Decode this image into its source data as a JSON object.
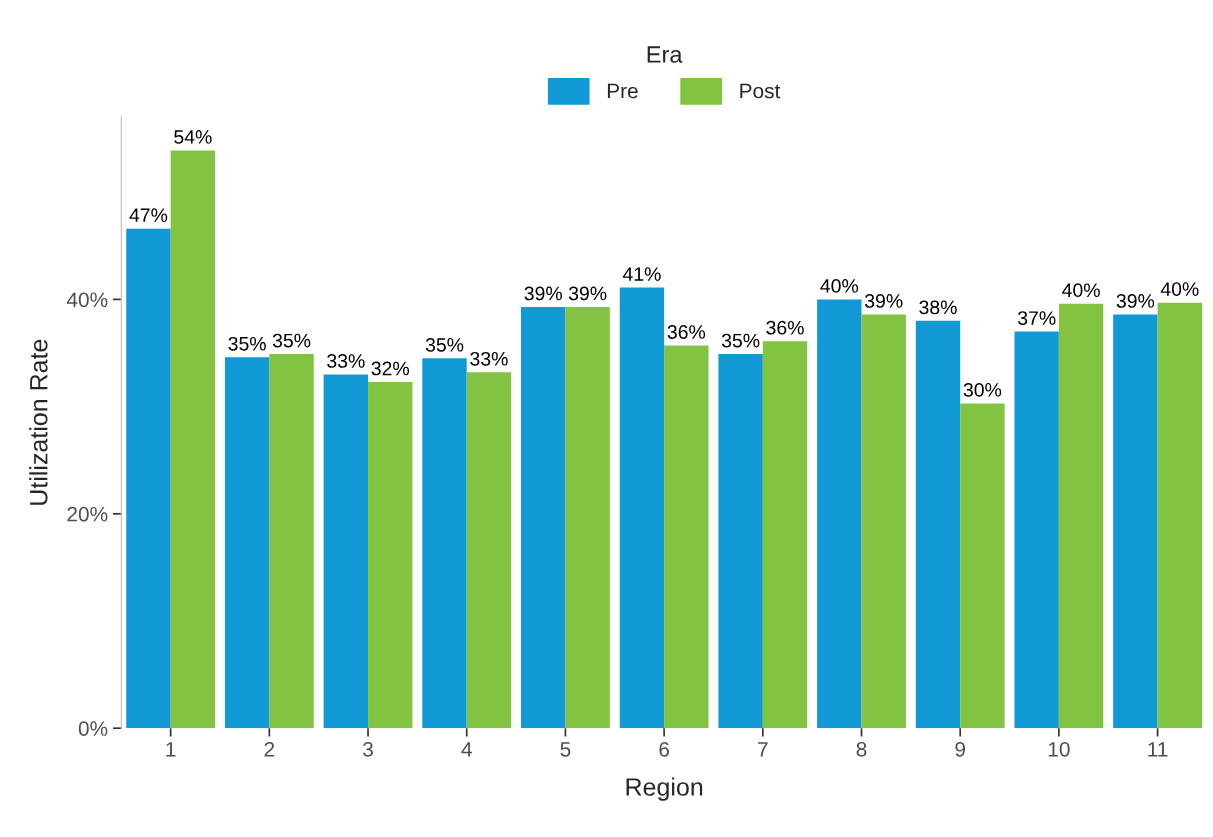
{
  "chart_data": {
    "type": "bar",
    "xlabel": "Region",
    "ylabel": "Utilization Rate",
    "legend_title": "Era",
    "legend": "top",
    "categories": [
      "1",
      "2",
      "3",
      "4",
      "5",
      "6",
      "7",
      "8",
      "9",
      "10",
      "11"
    ],
    "series": [
      {
        "name": "Pre",
        "color": "#1199d6",
        "values": [
          46.6,
          34.6,
          33.0,
          34.5,
          39.3,
          41.1,
          34.9,
          40.0,
          38.0,
          37.0,
          38.6
        ],
        "value_labels": [
          "47%",
          "35%",
          "33%",
          "35%",
          "39%",
          "41%",
          "35%",
          "40%",
          "38%",
          "37%",
          "39%"
        ]
      },
      {
        "name": "Post",
        "color": "#82c341",
        "values": [
          53.9,
          34.9,
          32.3,
          33.2,
          39.3,
          35.7,
          36.1,
          38.6,
          30.3,
          39.6,
          39.7
        ],
        "value_labels": [
          "54%",
          "35%",
          "32%",
          "33%",
          "39%",
          "36%",
          "36%",
          "39%",
          "30%",
          "40%",
          "40%"
        ]
      }
    ],
    "ylim": [
      0,
      57
    ],
    "yticks": [
      {
        "value": 0,
        "label": "0%"
      },
      {
        "value": 20,
        "label": "20%"
      },
      {
        "value": 40,
        "label": "40%"
      }
    ],
    "grid": false
  }
}
